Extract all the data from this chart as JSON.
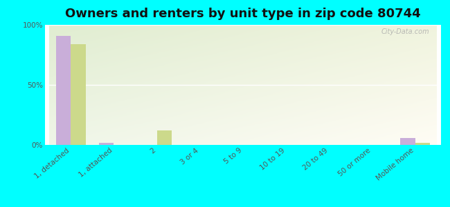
{
  "title": "Owners and renters by unit type in zip code 80744",
  "categories": [
    "1, detached",
    "1, attached",
    "2",
    "3 or 4",
    "5 to 9",
    "10 to 19",
    "20 to 49",
    "50 or more",
    "Mobile home"
  ],
  "owner_values": [
    91,
    2,
    0,
    0,
    0,
    0,
    0,
    0,
    6
  ],
  "renter_values": [
    84,
    0,
    12,
    0,
    0,
    0,
    0,
    0,
    2
  ],
  "owner_color": "#c9aed9",
  "renter_color": "#ccd98b",
  "background_color": "#00ffff",
  "ylabel_ticks": [
    "0%",
    "50%",
    "100%"
  ],
  "ytick_vals": [
    0,
    50,
    100
  ],
  "ylim": [
    0,
    100
  ],
  "bar_width": 0.35,
  "title_fontsize": 13,
  "tick_fontsize": 7.5,
  "legend_fontsize": 9,
  "watermark": "City-Data.com"
}
